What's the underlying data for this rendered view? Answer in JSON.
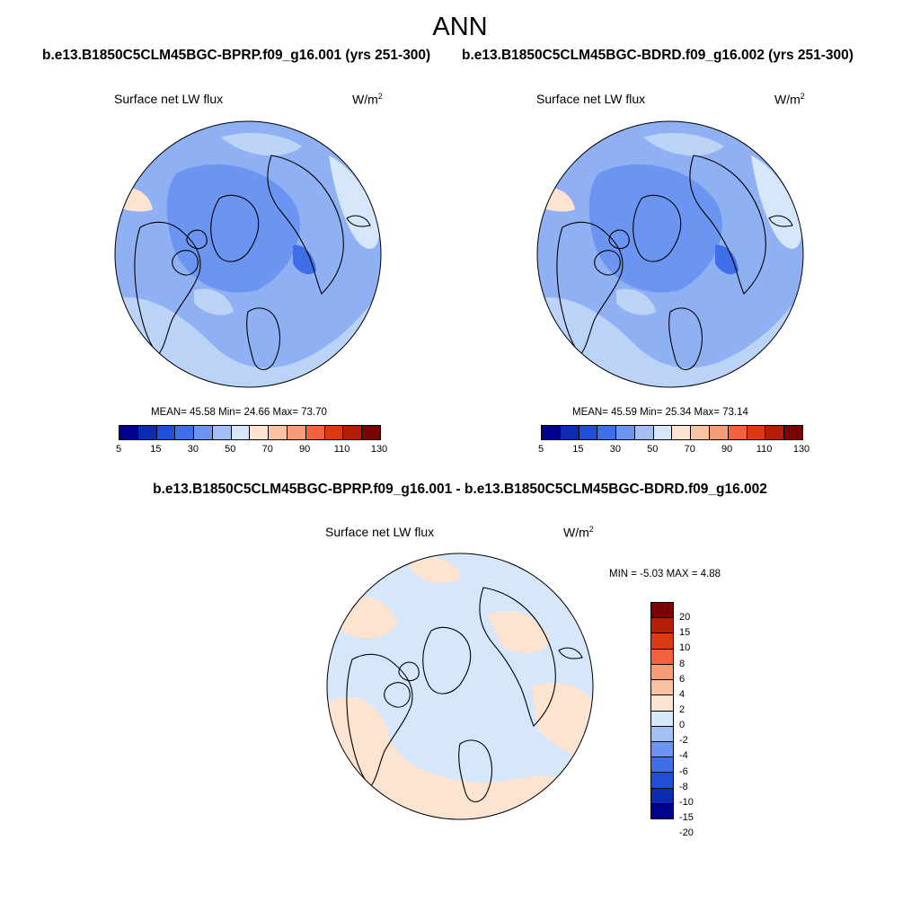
{
  "page": {
    "season": "ANN",
    "case1_title": "b.e13.B1850C5CLM45BGC-BPRP.f09_g16.001 (yrs 251-300)",
    "case2_title": "b.e13.B1850C5CLM45BGC-BDRD.f09_g16.002 (yrs 251-300)",
    "diff_title": "b.e13.B1850C5CLM45BGC-BPRP.f09_g16.001 - b.e13.B1850C5CLM45BGC-BDRD.f09_g16.002"
  },
  "panels": [
    {
      "variable": "Surface net LW flux",
      "units": "W/m",
      "units_sup": "2",
      "stats": "MEAN=  45.58  Min=  24.66  Max=  73.70"
    },
    {
      "variable": "Surface net LW flux",
      "units": "W/m",
      "units_sup": "2",
      "stats": "MEAN=  45.59  Min=  25.34  Max=  73.14"
    },
    {
      "variable": "Surface net LW flux",
      "units": "W/m",
      "units_sup": "2",
      "stats": "MIN =  -5.03 MAX =   4.88"
    }
  ],
  "colorbar_abs": {
    "colors": [
      "#00008f",
      "#0b2bb0",
      "#1f4fd6",
      "#3f6fe8",
      "#6b95f0",
      "#a4bff5",
      "#d6e6fb",
      "#fde4d0",
      "#f9c2a2",
      "#f59b78",
      "#f2623e",
      "#de3a12",
      "#b51e06",
      "#7a0403"
    ],
    "tick_labels": [
      "5",
      "15",
      "30",
      "50",
      "70",
      "90",
      "110",
      "130"
    ]
  },
  "colorbar_diff": {
    "colors": [
      "#7a0403",
      "#b51e06",
      "#de3a12",
      "#f2623e",
      "#f59b78",
      "#f9c2a2",
      "#fde4d0",
      "#d6e6fb",
      "#a4bff5",
      "#6b95f0",
      "#3f6fe8",
      "#1f4fd6",
      "#0b2bb0",
      "#00008f"
    ],
    "tick_labels": [
      "20",
      "15",
      "10",
      "8",
      "6",
      "4",
      "2",
      "0",
      "-2",
      "-4",
      "-6",
      "-8",
      "-10",
      "-15",
      "-20"
    ]
  },
  "map_colors": {
    "dark_blue": "#6b95f0",
    "mid_blue": "#8fb0f3",
    "light_blue": "#bcd3f8",
    "pale_blue": "#d6e6fb",
    "peach": "#fde4d0",
    "deep_blue": "#3f6fe8"
  }
}
